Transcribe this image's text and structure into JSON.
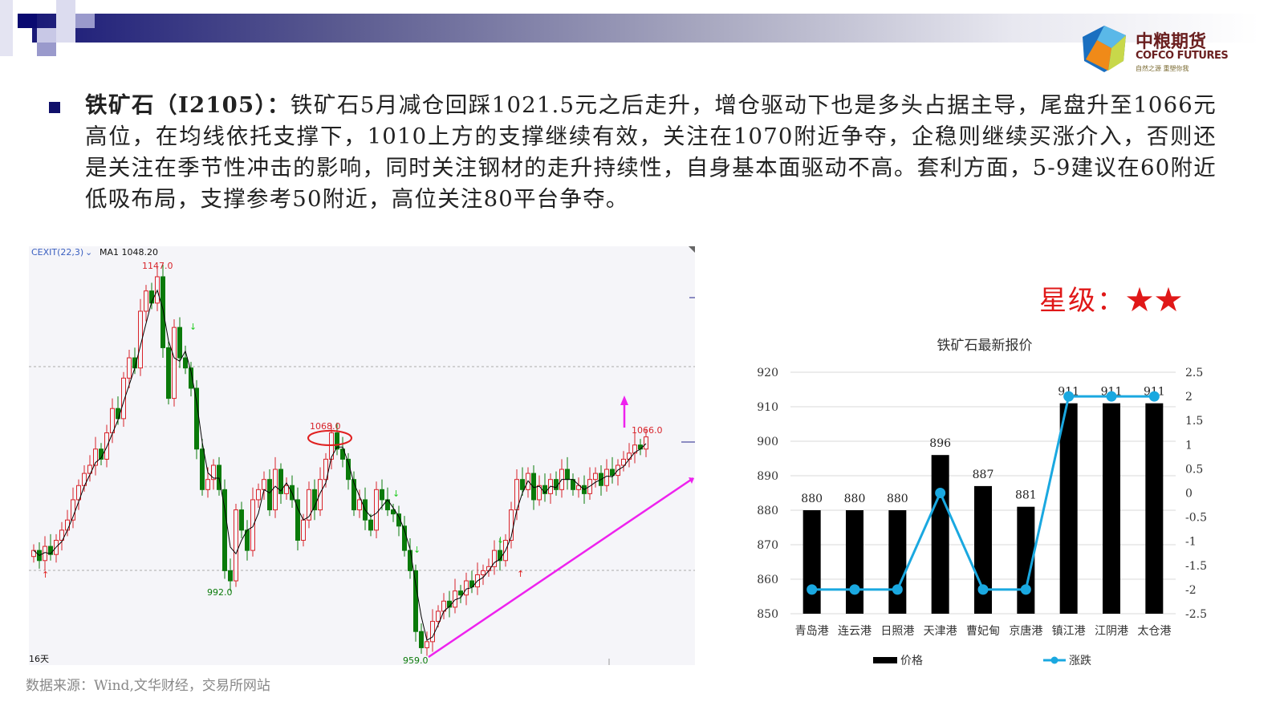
{
  "brand": {
    "name_cn": "中粮期货",
    "name_en": "COFCO FUTURES",
    "tagline": "自然之源 重塑你我"
  },
  "paragraph": {
    "heading": "铁矿石（I2105）：",
    "body": "铁矿石5月减仓回踩1021.5元之后走升，增仓驱动下也是多头占据主导，尾盘升至1066元高位，在均线依托支撑下，1010上方的支撑继续有效，关注在1070附近争夺，企稳则继续买涨介入，否则还是关注在季节性冲击的影响，同时关注钢材的走升持续性，自身基本面驱动不高。套利方面，5-9建议在60附近低吸布局，支撑参考50附近，高位关注80平台争夺。"
  },
  "rating": {
    "label": "星级：",
    "stars": "★★",
    "value": 2
  },
  "source": "数据来源：Wind,文华财经，交易所网站",
  "chart_data": [
    {
      "type": "candlestick",
      "indicator_label": "CEXIT(22,3)",
      "ma_label": "MA1 1048.20",
      "period_label": "16天",
      "annotations": {
        "high": "1147.0",
        "mid_high": "1068.0",
        "last": "1066.0",
        "low1": "992.0",
        "low2": "959.0"
      },
      "colors": {
        "up": "#d8232a",
        "down": "#0a7a0a",
        "ma": "#000000",
        "trendline": "#ee22ee"
      },
      "close": [
        1010,
        1005,
        1012,
        1008,
        1015,
        1020,
        1025,
        1035,
        1042,
        1048,
        1052,
        1060,
        1055,
        1068,
        1080,
        1075,
        1095,
        1105,
        1100,
        1128,
        1138,
        1132,
        1145,
        1110,
        1085,
        1120,
        1105,
        1100,
        1090,
        1060,
        1040,
        1045,
        1052,
        1040,
        1000,
        995,
        1030,
        1020,
        1010,
        1035,
        1040,
        1045,
        1030,
        1050,
        1038,
        1042,
        1035,
        1015,
        1025,
        1040,
        1030,
        1045,
        1055,
        1068,
        1060,
        1055,
        1045,
        1030,
        1035,
        1025,
        1020,
        1040,
        1035,
        1030,
        1028,
        1022,
        1010,
        1000,
        970,
        962,
        965,
        975,
        980,
        985,
        982,
        990,
        988,
        995,
        992,
        998,
        1000,
        1002,
        1010,
        1005,
        1015,
        1030,
        1045,
        1040,
        1048,
        1035,
        1042,
        1038,
        1045,
        1040,
        1050,
        1045,
        1040,
        1042,
        1038,
        1045,
        1048,
        1042,
        1050,
        1047,
        1052,
        1055,
        1058,
        1062,
        1060,
        1066
      ]
    },
    {
      "type": "bar+line",
      "title": "铁矿石最新报价",
      "categories": [
        "青岛港",
        "连云港",
        "日照港",
        "天津港",
        "曹妃甸",
        "京唐港",
        "镇江港",
        "江阴港",
        "太仓港"
      ],
      "series": [
        {
          "name": "价格",
          "type": "bar",
          "axis": "left",
          "values": [
            880,
            880,
            880,
            896,
            887,
            881,
            911,
            911,
            911
          ],
          "color": "#000000"
        },
        {
          "name": "涨跌",
          "type": "line",
          "axis": "right",
          "values": [
            -2,
            -2,
            -2,
            0,
            -2,
            -2,
            2,
            2,
            2
          ],
          "color": "#1aa8e0"
        }
      ],
      "ylim_left": [
        850,
        920
      ],
      "yticks_left": [
        "920",
        "910",
        "900",
        "890",
        "880",
        "870",
        "860",
        "850"
      ],
      "ylim_right": [
        -2.5,
        2.5
      ],
      "yticks_right": [
        "2.5",
        "2",
        "1.5",
        "1",
        "0.5",
        "0",
        "-0.5",
        "-1",
        "-1.5",
        "-2",
        "-2.5"
      ],
      "grid": true,
      "legend": "bottom"
    }
  ]
}
